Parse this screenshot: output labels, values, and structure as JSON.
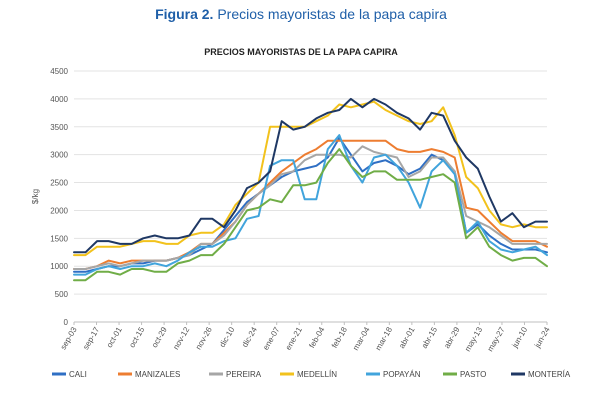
{
  "figure_caption": {
    "prefix": "Figura 2.",
    "text": "Precios mayoristas de la papa capira"
  },
  "chart_data": {
    "type": "line",
    "title": "PRECIOS MAYORISTAS DE LA PAPA CAPIRA",
    "xlabel": "",
    "ylabel": "$/kg",
    "ylim": [
      0,
      4500
    ],
    "yticks": [
      0,
      500,
      1000,
      1500,
      2000,
      2500,
      3000,
      3500,
      4000,
      4500
    ],
    "grid": true,
    "legend_position": "bottom",
    "x_tick_labels": [
      "sep-03",
      "sep-17",
      "oct-01",
      "oct-15",
      "oct-29",
      "nov-12",
      "nov-26",
      "dic-10",
      "dic-24",
      "ene-07",
      "ene-21",
      "feb-04",
      "feb-18",
      "mar-04",
      "mar-18",
      "abr-01",
      "abr-15",
      "abr-29",
      "may-13",
      "may-27",
      "jun-10",
      "jun-24"
    ],
    "series": [
      {
        "name": "CALI",
        "color": "#2f6fc4",
        "values": [
          900,
          900,
          950,
          1000,
          1000,
          1050,
          1050,
          1100,
          1100,
          1150,
          1200,
          1300,
          1400,
          1650,
          1900,
          2150,
          2300,
          2450,
          2600,
          2700,
          2750,
          2800,
          2950,
          3300,
          3000,
          2700,
          2850,
          2900,
          2800,
          2650,
          2750,
          3000,
          2900,
          2700,
          1600,
          1750,
          1550,
          1400,
          1300,
          1300,
          1300,
          1250
        ]
      },
      {
        "name": "MANIZALES",
        "color": "#ed7d31",
        "values": [
          950,
          950,
          1000,
          1100,
          1050,
          1100,
          1100,
          1100,
          1100,
          1150,
          1250,
          1400,
          1400,
          1600,
          1800,
          2100,
          2300,
          2500,
          2700,
          2850,
          3000,
          3100,
          3250,
          3250,
          3250,
          3250,
          3250,
          3250,
          3100,
          3050,
          3050,
          3100,
          3050,
          2950,
          2050,
          2000,
          1800,
          1600,
          1450,
          1450,
          1450,
          1350
        ]
      },
      {
        "name": "PEREIRA",
        "color": "#a6a6a6",
        "values": [
          950,
          950,
          1000,
          1050,
          1000,
          1050,
          1100,
          1100,
          1100,
          1150,
          1200,
          1400,
          1400,
          1550,
          1800,
          2100,
          2300,
          2450,
          2650,
          2700,
          2900,
          3000,
          3000,
          3000,
          2950,
          3150,
          3050,
          3000,
          2950,
          2600,
          2700,
          2950,
          2950,
          2700,
          1900,
          1800,
          1700,
          1550,
          1400,
          1400,
          1400,
          1400
        ]
      },
      {
        "name": "MEDELLÍN",
        "color": "#f2c21c",
        "values": [
          1200,
          1200,
          1350,
          1350,
          1350,
          1400,
          1450,
          1450,
          1400,
          1400,
          1550,
          1600,
          1600,
          1750,
          2100,
          2300,
          2500,
          3500,
          3500,
          3500,
          3500,
          3600,
          3700,
          3900,
          3850,
          3900,
          3950,
          3800,
          3700,
          3600,
          3550,
          3600,
          3850,
          3350,
          2600,
          2400,
          2000,
          1750,
          1700,
          1750,
          1700,
          1700
        ]
      },
      {
        "name": "POPAYÁN",
        "color": "#41a4dc",
        "values": [
          850,
          850,
          950,
          1000,
          950,
          1000,
          1000,
          1050,
          1000,
          1100,
          1250,
          1350,
          1350,
          1450,
          1500,
          1850,
          1900,
          2800,
          2900,
          2900,
          2200,
          2200,
          3100,
          3350,
          2800,
          2500,
          2950,
          3000,
          2800,
          2500,
          2050,
          2700,
          2900,
          2650,
          1600,
          1800,
          1450,
          1300,
          1250,
          1300,
          1350,
          1200
        ]
      },
      {
        "name": "PASTO",
        "color": "#70ad47",
        "values": [
          750,
          750,
          900,
          900,
          850,
          950,
          950,
          900,
          900,
          1050,
          1100,
          1200,
          1200,
          1400,
          1700,
          2000,
          2050,
          2200,
          2150,
          2450,
          2450,
          2500,
          2850,
          3100,
          2800,
          2600,
          2700,
          2700,
          2550,
          2550,
          2550,
          2600,
          2650,
          2500,
          1500,
          1700,
          1350,
          1200,
          1100,
          1150,
          1150,
          1000
        ]
      },
      {
        "name": "MONTERÍA",
        "color": "#1f3864",
        "values": [
          1250,
          1250,
          1450,
          1450,
          1400,
          1400,
          1500,
          1550,
          1500,
          1500,
          1550,
          1850,
          1850,
          1700,
          2000,
          2400,
          2500,
          2700,
          3600,
          3450,
          3500,
          3650,
          3750,
          3800,
          4000,
          3850,
          4000,
          3900,
          3750,
          3650,
          3450,
          3750,
          3700,
          3250,
          2950,
          2750,
          2250,
          1800,
          1950,
          1700,
          1800,
          1800
        ]
      }
    ]
  }
}
